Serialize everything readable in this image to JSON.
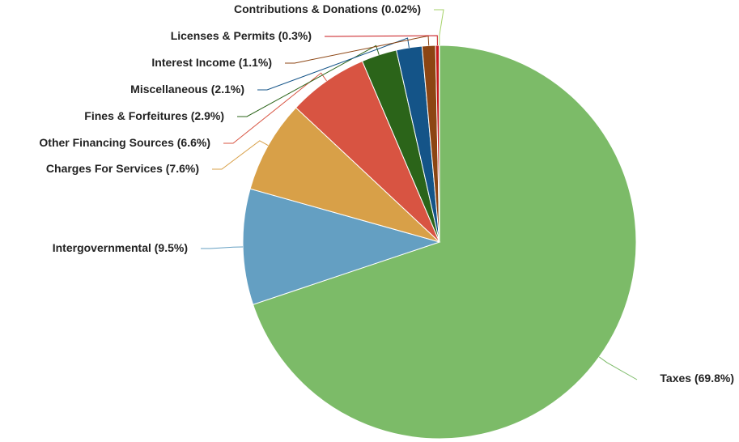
{
  "chart_data": {
    "type": "pie",
    "title": "",
    "slices": [
      {
        "label": "Taxes (69.8%)",
        "value": 69.8,
        "color": "#7cbb68"
      },
      {
        "label": "Intergovernmental (9.5%)",
        "value": 9.5,
        "color": "#649fc2"
      },
      {
        "label": "Charges For Services (7.6%)",
        "value": 7.6,
        "color": "#d8a048"
      },
      {
        "label": "Other Financing Sources (6.6%)",
        "value": 6.6,
        "color": "#d85442"
      },
      {
        "label": "Fines & Forfeitures (2.9%)",
        "value": 2.9,
        "color": "#2b6419"
      },
      {
        "label": "Miscellaneous (2.1%)",
        "value": 2.1,
        "color": "#145488"
      },
      {
        "label": "Interest Income (1.1%)",
        "value": 1.1,
        "color": "#8c4513"
      },
      {
        "label": "Licenses & Permits (0.3%)",
        "value": 0.3,
        "color": "#c8181c"
      },
      {
        "label": "Contributions & Donations (0.02%)",
        "value": 0.02,
        "color": "#a6d26a"
      }
    ]
  }
}
